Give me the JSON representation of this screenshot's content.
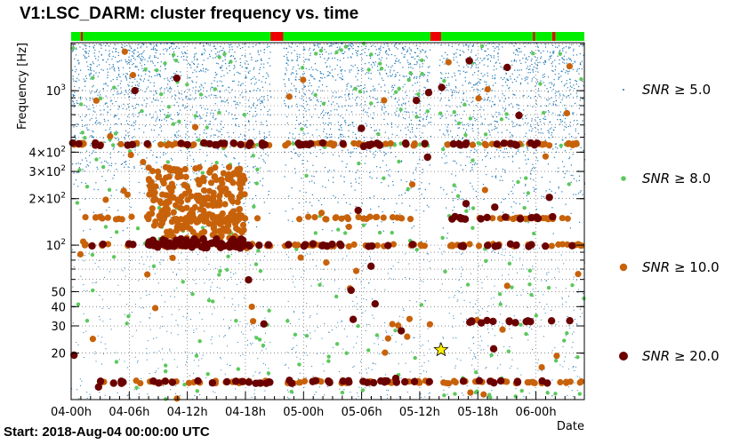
{
  "title": "V1:LSC_DARM: cluster frequency vs. time",
  "footer": "Start: 2018-Aug-04 00:00:00 UTC",
  "colors": {
    "snr5": "#1f77b4",
    "snr8": "#5cc85c",
    "snr10": "#c8620a",
    "snr20": "#6b0000",
    "segment_on": "#00ee00",
    "segment_off": "#ee0000",
    "star": "#ffee00"
  },
  "chart_data": {
    "type": "scatter",
    "title": "V1:LSC_DARM: cluster frequency vs. time",
    "xlabel": "Date",
    "ylabel": "Frequency [Hz]",
    "x_unit": "hours since 2018-Aug-04 00:00:00 UTC",
    "xlim": [
      0,
      53
    ],
    "ylim": [
      10,
      2048
    ],
    "y_scale": "log",
    "grid": true,
    "x_ticks": [
      {
        "value": 0,
        "label": "04-00h"
      },
      {
        "value": 6,
        "label": "04-06h"
      },
      {
        "value": 12,
        "label": "04-12h"
      },
      {
        "value": 18,
        "label": "04-18h"
      },
      {
        "value": 24,
        "label": "05-00h"
      },
      {
        "value": 30,
        "label": "05-06h"
      },
      {
        "value": 36,
        "label": "05-12h"
      },
      {
        "value": 42,
        "label": "05-18h"
      },
      {
        "value": 48,
        "label": "06-00h"
      }
    ],
    "y_ticks": [
      {
        "value": 20,
        "label": "20"
      },
      {
        "value": 30,
        "label": "30"
      },
      {
        "value": 40,
        "label": "40"
      },
      {
        "value": 50,
        "label": "50"
      },
      {
        "value": 100,
        "label": "10^2"
      },
      {
        "value": 200,
        "label": "2×10^2"
      },
      {
        "value": 300,
        "label": "3×10^2"
      },
      {
        "value": 400,
        "label": "4×10^2"
      },
      {
        "value": 1000,
        "label": "10^3"
      }
    ],
    "legend": {
      "placement": "right",
      "entries": [
        {
          "label": "SNR ≥ 5.0",
          "series": "snr5"
        },
        {
          "label": "SNR ≥ 8.0",
          "series": "snr8"
        },
        {
          "label": "SNR ≥ 10.0",
          "series": "snr10"
        },
        {
          "label": "SNR ≥ 20.0",
          "series": "snr20"
        }
      ]
    },
    "segments_off": [
      [
        1.0,
        1.2
      ],
      [
        20.6,
        21.9
      ],
      [
        37.1,
        38.2
      ],
      [
        47.7,
        47.9
      ],
      [
        49.7,
        50.0
      ]
    ],
    "gaps": [
      [
        20.6,
        21.9
      ],
      [
        37.1,
        38.0
      ]
    ],
    "bands": [
      {
        "freq": 450,
        "span": [
          0,
          53
        ],
        "series": [
          "snr8",
          "snr10",
          "snr20"
        ]
      },
      {
        "freq": 150,
        "span": [
          1,
          20
        ],
        "series": [
          "snr10"
        ]
      },
      {
        "freq": 150,
        "span": [
          22,
          36
        ],
        "series": [
          "snr10"
        ]
      },
      {
        "freq": 150,
        "span": [
          38,
          52
        ],
        "series": [
          "snr10",
          "snr20"
        ]
      },
      {
        "freq": 100,
        "span": [
          1,
          53
        ],
        "series": [
          "snr10",
          "snr20"
        ]
      },
      {
        "freq": 32,
        "span": [
          40,
          53
        ],
        "series": [
          "snr20"
        ]
      },
      {
        "freq": 13,
        "span": [
          3,
          53
        ],
        "series": [
          "snr10",
          "snr20"
        ]
      }
    ],
    "clusters": [
      {
        "x_range": [
          8,
          18
        ],
        "y_range": [
          110,
          320
        ],
        "series": "snr10"
      },
      {
        "x_range": [
          8,
          18
        ],
        "y_range": [
          95,
          110
        ],
        "series": "snr20"
      }
    ],
    "highlight": {
      "x": 38.2,
      "y": 21,
      "marker": "star"
    }
  }
}
